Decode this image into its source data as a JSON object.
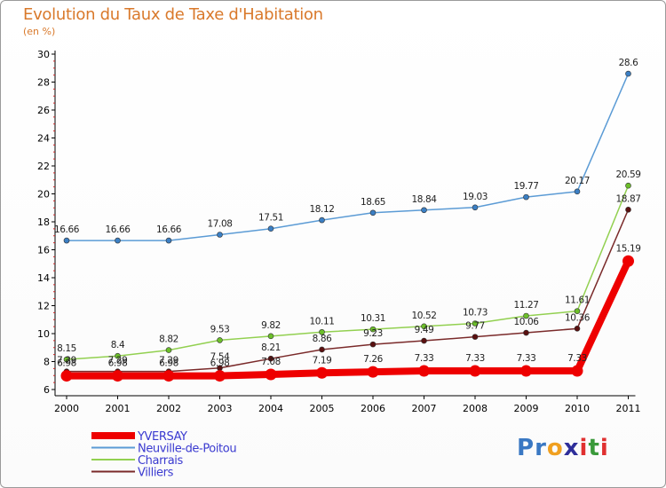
{
  "header": {
    "title": "Evolution du Taux de Taxe d'Habitation",
    "subtitle": "(en %)"
  },
  "logo": {
    "text": "Proxiti",
    "letters": [
      {
        "ch": "P",
        "color": "#3a78c3"
      },
      {
        "ch": "r",
        "color": "#3a78c3"
      },
      {
        "ch": "o",
        "color": "#f0a020"
      },
      {
        "ch": "x",
        "color": "#2f2f9a"
      },
      {
        "ch": "i",
        "color": "#e03030"
      },
      {
        "ch": "t",
        "color": "#3a9a3a"
      },
      {
        "ch": "i",
        "color": "#e03030"
      }
    ]
  },
  "chart_data": {
    "type": "line",
    "title": "Evolution du Taux de Taxe d'Habitation",
    "subtitle": "(en %)",
    "xlabel": "",
    "ylabel": "",
    "categories": [
      "2000",
      "2001",
      "2002",
      "2003",
      "2004",
      "2005",
      "2006",
      "2007",
      "2008",
      "2009",
      "2010",
      "2011"
    ],
    "ylim": [
      6,
      30
    ],
    "yticks": [
      6,
      8,
      10,
      12,
      14,
      16,
      18,
      20,
      22,
      24,
      26,
      28,
      30
    ],
    "grid": false,
    "legend": "bottom-left",
    "series": [
      {
        "name": "YVERSAY",
        "color": "#ee0000",
        "values": [
          6.98,
          6.98,
          6.98,
          6.98,
          7.08,
          7.19,
          7.26,
          7.33,
          7.33,
          7.33,
          7.33,
          15.19
        ],
        "labels": [
          "6.98",
          "6.98",
          "6.98",
          "6.98",
          "7.08",
          "7.19",
          "7.26",
          "7.33",
          "7.33",
          "7.33",
          "7.33",
          "15.19"
        ]
      },
      {
        "name": "Neuville-de-Poitou",
        "color": "#5b9bd5",
        "values": [
          16.66,
          16.66,
          16.66,
          17.08,
          17.51,
          18.12,
          18.65,
          18.84,
          19.03,
          19.77,
          20.17,
          28.6
        ],
        "labels": [
          "16.66",
          "16.66",
          "16.66",
          "17.08",
          "17.51",
          "18.12",
          "18.65",
          "18.84",
          "19.03",
          "19.77",
          "20.17",
          "28.6"
        ]
      },
      {
        "name": "Charrais",
        "color": "#92d050",
        "values": [
          8.15,
          8.4,
          8.82,
          9.53,
          9.82,
          10.11,
          10.31,
          10.52,
          10.73,
          11.27,
          11.61,
          20.59
        ],
        "labels": [
          "8.15",
          "8.4",
          "8.82",
          "9.53",
          "9.82",
          "10.11",
          "10.31",
          "10.52",
          "10.73",
          "11.27",
          "11.61",
          "20.59"
        ]
      },
      {
        "name": "Villiers",
        "color": "#7a2a2a",
        "values": [
          7.29,
          7.29,
          7.29,
          7.54,
          8.21,
          8.86,
          9.23,
          9.49,
          9.77,
          10.06,
          10.36,
          18.87
        ],
        "labels": [
          "7.29",
          "7.29",
          "7.29",
          "7.54",
          "8.21",
          "8.86",
          "9.23",
          "9.49",
          "9.77",
          "10.06",
          "10.36",
          "18.87"
        ]
      }
    ]
  }
}
